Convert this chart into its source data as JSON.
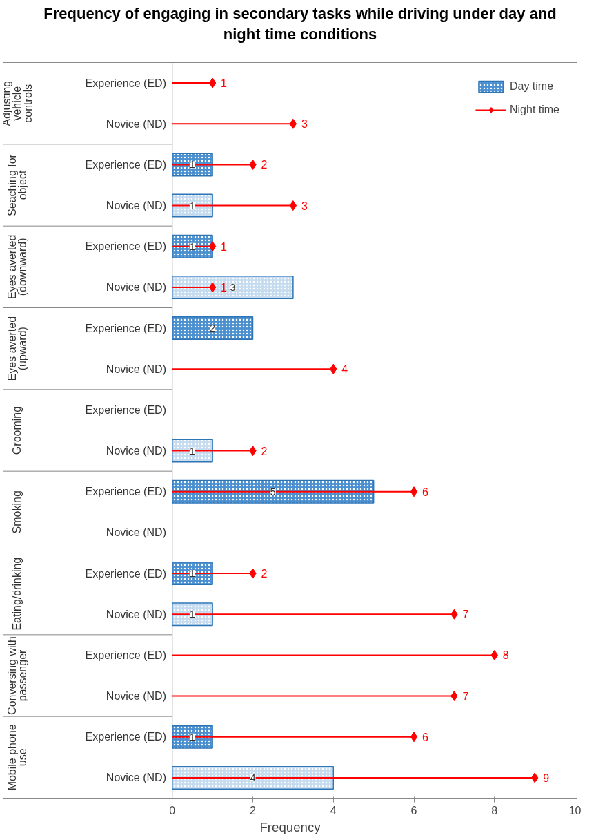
{
  "chart_data": {
    "type": "bar",
    "orientation": "horizontal",
    "title": "Frequency of engaging in secondary tasks while driving under day and night time conditions",
    "xlabel": "Frequency",
    "categories": [
      "Experience (ED)",
      "Novice (ND)",
      "Experience (ED)",
      "Novice (ND)",
      "Experience (ED)",
      "Novice (ND)",
      "Experience (ED)",
      "Novice (ND)",
      "Experience (ED)",
      "Novice (ND)",
      "Experience (ED)",
      "Novice (ND)",
      "Experience (ED)",
      "Novice (ND)",
      "Experience (ED)",
      "Novice (ND)",
      "Experience (ED)",
      "Novice (ND)"
    ],
    "annotations": [
      "Adjusting vehicle controls",
      "Seaching for object",
      "Eyes averted (downward)",
      "Eyes averted (upward)",
      "Grooming",
      "Smoking",
      "Eating/drinking",
      "Conversing with passenger",
      "Mobile phone use"
    ],
    "series": [
      {
        "name": "Day time",
        "color": "#2e75b6",
        "colors": [
          "#4a8fd0",
          "#c5dcf0",
          "#4a8fd0",
          "#c5dcf0",
          "#4a8fd0",
          "#c5dcf0",
          "#4a8fd0",
          "#c5dcf0",
          "#4a8fd0",
          "#c5dcf0",
          "#4a8fd0",
          "#c5dcf0",
          "#4a8fd0",
          "#c5dcf0",
          "#4a8fd0",
          "#c5dcf0",
          "#4a8fd0",
          "#c5dcf0"
        ],
        "values": [
          null,
          null,
          1,
          1,
          1,
          3,
          2,
          null,
          null,
          1,
          5,
          null,
          1,
          1,
          null,
          null,
          1,
          4
        ]
      },
      {
        "name": "Night time",
        "type": "lollipop",
        "color": "#ff0000",
        "marker": "diamond",
        "values": [
          1,
          3,
          2,
          3,
          1,
          1,
          null,
          4,
          null,
          2,
          6,
          null,
          2,
          7,
          8,
          7,
          6,
          9
        ]
      }
    ],
    "xlim": [
      0,
      10
    ],
    "xticks": [
      0,
      2,
      4,
      6,
      8,
      10
    ],
    "data_labels": true,
    "legend": "top right",
    "grid": false
  }
}
